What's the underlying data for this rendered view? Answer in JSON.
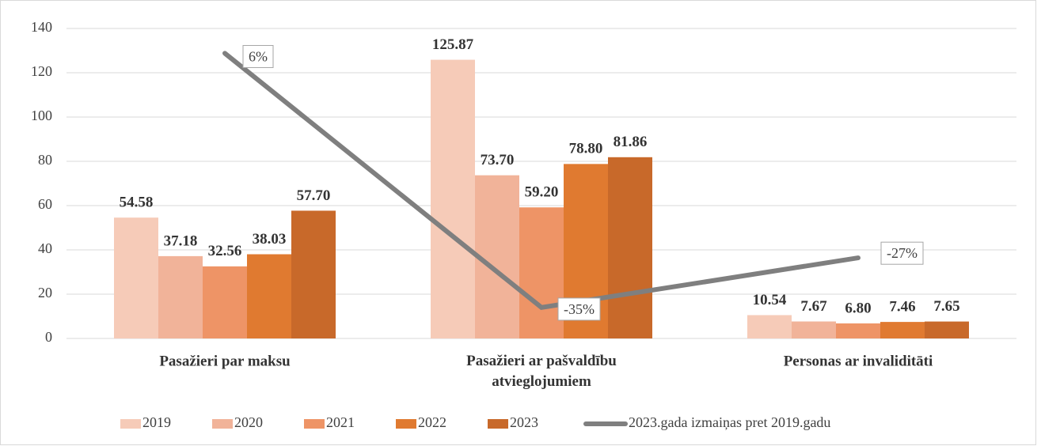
{
  "chart_data": {
    "type": "bar",
    "categories": [
      "Pasažieri par maksu",
      "Pasažieri ar pašvaldību atvieglojumiem",
      "Personas ar invaliditāti"
    ],
    "series": [
      {
        "name": "2019",
        "color": "#f6cbb8",
        "values": [
          54.58,
          125.87,
          10.54
        ],
        "value_labels": [
          "54.58",
          "125.87",
          "10.54"
        ]
      },
      {
        "name": "2020",
        "color": "#f1b399",
        "values": [
          37.18,
          73.7,
          7.67
        ],
        "value_labels": [
          "37.18",
          "73.70",
          "7.67"
        ]
      },
      {
        "name": "2021",
        "color": "#ee9466",
        "values": [
          32.56,
          59.2,
          6.8
        ],
        "value_labels": [
          "32.56",
          "59.20",
          "6.80"
        ]
      },
      {
        "name": "2022",
        "color": "#e07a30",
        "values": [
          38.03,
          78.8,
          7.46
        ],
        "value_labels": [
          "38.03",
          "78.80",
          "7.46"
        ]
      },
      {
        "name": "2023",
        "color": "#c8692a",
        "values": [
          57.7,
          81.86,
          7.65
        ],
        "value_labels": [
          "57.70",
          "81.86",
          "7.65"
        ]
      },
      {
        "name": "2023.gada izmaiņas pret 2019.gadu",
        "type": "line",
        "axis": "y2",
        "color": "#7f7f7f",
        "values": [
          6,
          -35,
          -27
        ],
        "value_labels": [
          "6%",
          "-35%",
          "-27%"
        ]
      }
    ],
    "ylim": [
      0,
      140
    ],
    "yticks": [
      0,
      20,
      40,
      60,
      80,
      100,
      120,
      140
    ],
    "y2lim": [
      -40,
      10
    ],
    "grid": true,
    "legend": "bottom"
  }
}
